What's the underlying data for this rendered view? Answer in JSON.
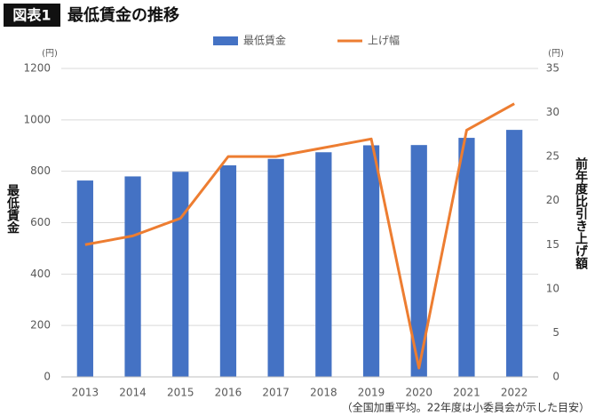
{
  "chart_data": {
    "type": "bar",
    "badge": "図表1",
    "title": "最低賃金の推移",
    "ylabel": "最低賃金",
    "ylabel_unit": "(円)",
    "y2label": "前年度比引き上げ額",
    "y2label_unit": "(円)",
    "note": "（全国加重平均。22年度は小委員会が示した目安）",
    "categories": [
      "2013",
      "2014",
      "2015",
      "2016",
      "2017",
      "2018",
      "2019",
      "2020",
      "2021",
      "2022"
    ],
    "series": [
      {
        "name": "最低賃金",
        "color": "#4472c4",
        "values": [
          764,
          780,
          798,
          823,
          848,
          874,
          901,
          902,
          930,
          961
        ]
      },
      {
        "name": "上げ幅",
        "color": "#ed7d31",
        "type": "line",
        "axis": "y2",
        "values": [
          15,
          16,
          18,
          25,
          25,
          26,
          27,
          1,
          28,
          31
        ]
      }
    ],
    "ylim": [
      0,
      1200
    ],
    "yticks": [
      0,
      200,
      400,
      600,
      800,
      1000,
      1200
    ],
    "y2lim": [
      0,
      35
    ],
    "y2ticks": [
      0,
      5,
      10,
      15,
      20,
      25,
      30,
      35
    ],
    "grid": true
  }
}
